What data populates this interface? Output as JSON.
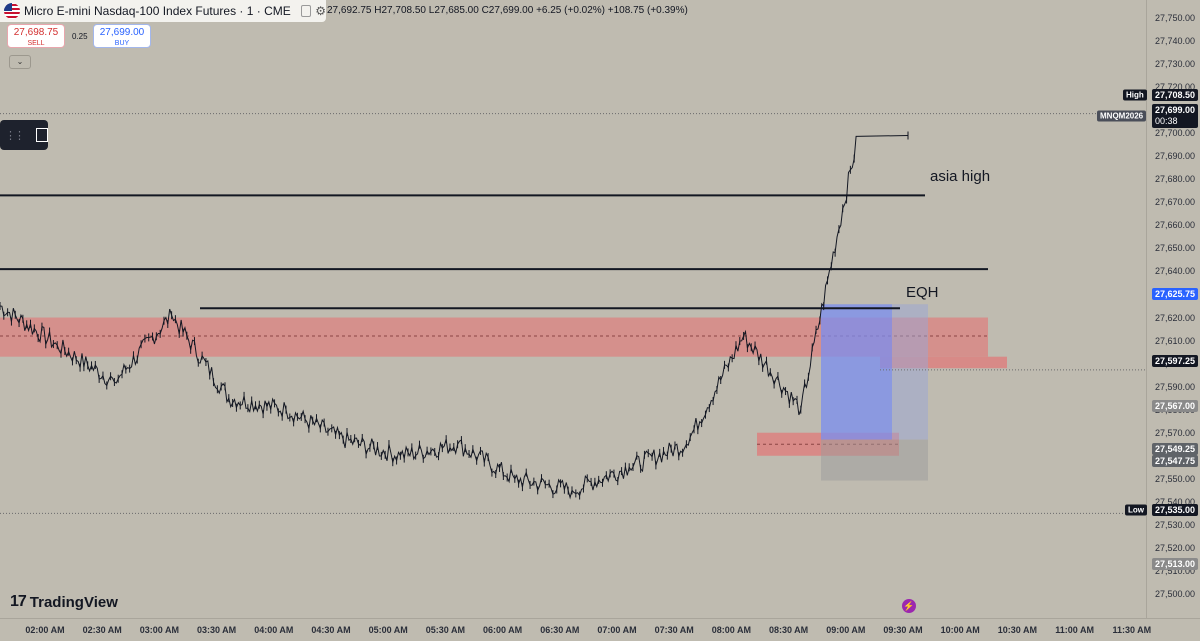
{
  "header": {
    "title": "Micro E-mini Nasdaq-100 Index Futures · 1 · CME",
    "ohlc": "27,692.75 H27,708.50 L27,685.00 C27,699.00 +6.25 (+0.02%) +108.75 (+0.39%)"
  },
  "trading": {
    "sell_price": "27,698.75",
    "sell_label": "SELL",
    "buy_price": "27,699.00",
    "buy_label": "BUY",
    "spread": "0.25"
  },
  "annotations": {
    "asia_high": "asia high",
    "eqh": "EQH"
  },
  "logo": "TradingView",
  "price_scale": {
    "ticks": [
      "27,750.00",
      "27,740.00",
      "27,730.00",
      "27,720.00",
      "27,710.00",
      "27,700.00",
      "27,690.00",
      "27,680.00",
      "27,670.00",
      "27,660.00",
      "27,650.00",
      "27,640.00",
      "27,630.00",
      "27,620.00",
      "27,610.00",
      "27,600.00",
      "27,590.00",
      "27,580.00",
      "27,570.00",
      "27,560.00",
      "27,550.00",
      "27,540.00",
      "27,530.00",
      "27,520.00",
      "27,510.00",
      "27,500.00"
    ],
    "high_tag": "High",
    "high_value": "27,708.50",
    "symbol_tag": "MNQM2026",
    "last_price": "27,699.00",
    "countdown": "00:38",
    "blue_label": "27,625.75",
    "dark_label": "27,597.25",
    "gray_label_1": "27,567.00",
    "gray_label_2": "27,549.25",
    "gray_label_3": "27,547.75",
    "low_tag": "Low",
    "low_value": "27,535.00",
    "gray_label_4": "27,513.00"
  },
  "time_axis": [
    "02:00 AM",
    "02:30 AM",
    "03:00 AM",
    "03:30 AM",
    "04:00 AM",
    "04:30 AM",
    "05:00 AM",
    "05:30 AM",
    "06:00 AM",
    "06:30 AM",
    "07:00 AM",
    "07:30 AM",
    "08:00 AM",
    "08:30 AM",
    "09:00 AM",
    "09:30 AM",
    "10:00 AM",
    "10:30 AM",
    "11:00 AM",
    "11:30 AM"
  ],
  "colors": {
    "background": "#bfbbb0",
    "supply_zone": "#e07a7a",
    "long_position": "#7a8ef0",
    "price_line": "#131722",
    "blue_label": "#2962ff"
  },
  "chart_data": {
    "type": "line",
    "title": "Micro E-mini Nasdaq-100 Index Futures · 1 · CME",
    "price_range": [
      27500,
      27750
    ],
    "x": [
      "02:00 AM",
      "02:30 AM",
      "03:00 AM",
      "03:30 AM",
      "04:00 AM",
      "04:30 AM",
      "05:00 AM",
      "05:30 AM",
      "06:00 AM",
      "06:30 AM",
      "07:00 AM",
      "07:30 AM",
      "08:00 AM",
      "08:30 AM",
      "09:00 AM",
      "09:30 AM"
    ],
    "series": [
      {
        "values": [
          27625,
          27608,
          27592,
          27621,
          27585,
          27580,
          27567,
          27560,
          27565,
          27550,
          27545,
          27555,
          27565,
          27612,
          27580,
          27699
        ]
      }
    ],
    "levels": [
      {
        "label": "asia high",
        "price": 27673
      },
      {
        "price": 27641
      },
      {
        "label": "EQH",
        "price": 27624
      },
      {
        "price": 27597.25
      }
    ],
    "zones": [
      {
        "price_range": [
          27603,
          27620
        ]
      },
      {
        "price_range": [
          27560,
          27570
        ]
      },
      {
        "price_range": [
          27598,
          27603
        ]
      }
    ],
    "long_position": {
      "entry": 27567,
      "target": 27625.75,
      "stop": 27549.25
    },
    "high": 27708.5,
    "low": 27535
  }
}
